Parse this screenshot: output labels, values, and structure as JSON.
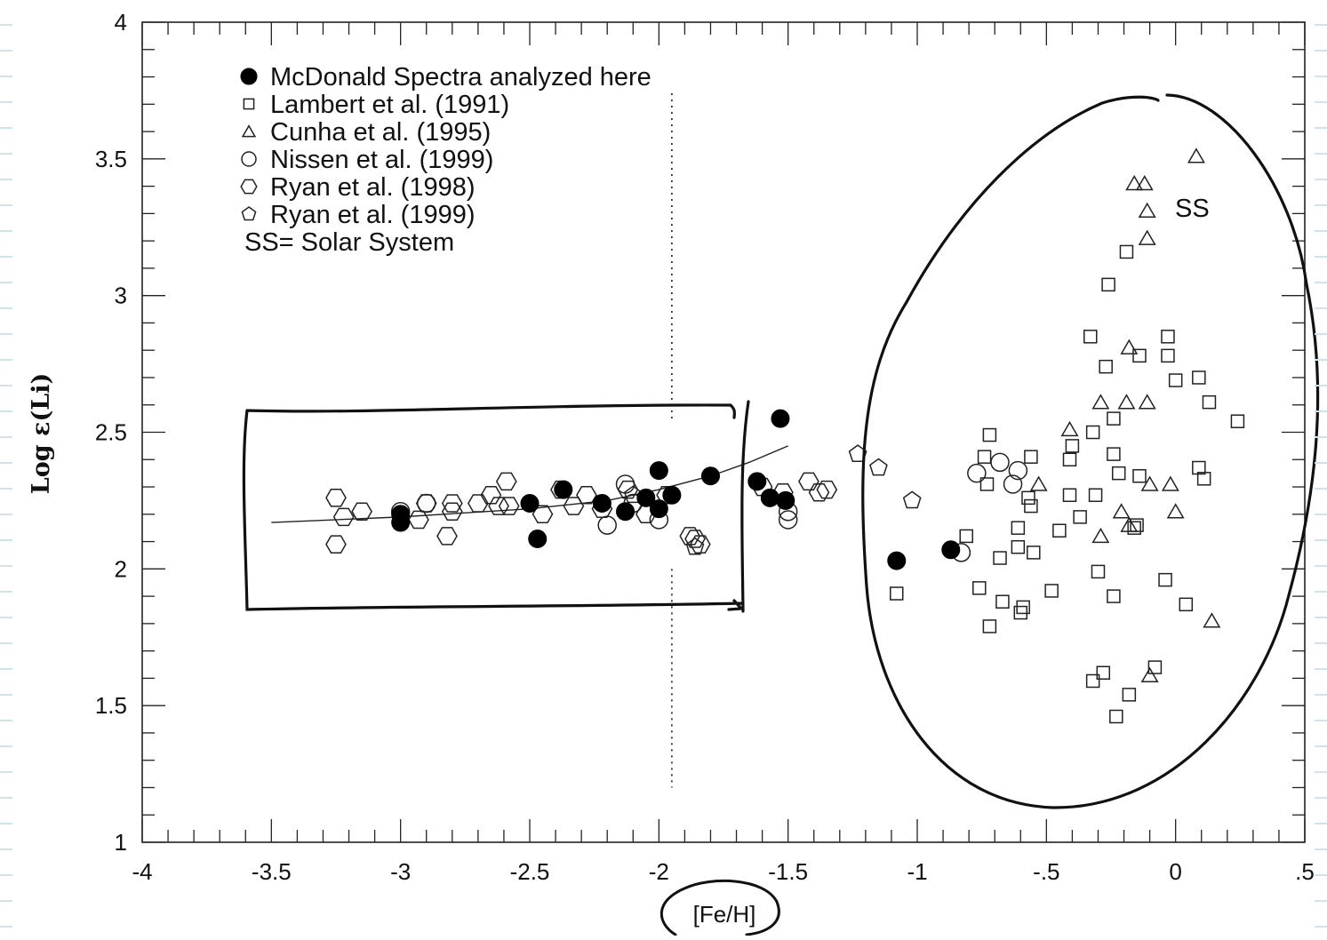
{
  "chart_data": {
    "type": "scatter",
    "title": "",
    "xlabel": "[Fe/H]",
    "ylabel": "Log ε(Li)",
    "xlim": [
      -4,
      0.5
    ],
    "ylim": [
      1,
      4
    ],
    "x_ticks": [
      "-4",
      "-3.5",
      "-3",
      "-2.5",
      "-2",
      "-1.5",
      "-1",
      "-.5",
      "0",
      ".5"
    ],
    "y_ticks": [
      "1",
      "1.5",
      "2",
      "2.5",
      "3",
      "3.5",
      "4"
    ],
    "grid": false,
    "legend_position": "top-left",
    "legend": [
      {
        "marker": "filled-circle",
        "label": "McDonald Spectra analyzed here"
      },
      {
        "marker": "square",
        "label": "Lambert et al. (1991)"
      },
      {
        "marker": "triangle",
        "label": "Cunha et al. (1995)"
      },
      {
        "marker": "circle",
        "label": "Nissen et al. (1999)"
      },
      {
        "marker": "hexagon",
        "label": "Ryan et al. (1998)"
      },
      {
        "marker": "pentagon",
        "label": "Ryan et al. (1999)"
      }
    ],
    "legend_note": "SS= Solar System",
    "annotation": "SS",
    "vertical_reference_line": -1.95,
    "series": [
      {
        "name": "McDonald Spectra analyzed here",
        "marker": "filled-circle",
        "points": [
          [
            -3.0,
            2.2
          ],
          [
            -3.0,
            2.17
          ],
          [
            -2.5,
            2.24
          ],
          [
            -2.47,
            2.11
          ],
          [
            -2.37,
            2.29
          ],
          [
            -2.22,
            2.24
          ],
          [
            -2.13,
            2.21
          ],
          [
            -2.05,
            2.26
          ],
          [
            -2.0,
            2.36
          ],
          [
            -2.0,
            2.22
          ],
          [
            -1.95,
            2.27
          ],
          [
            -1.8,
            2.34
          ],
          [
            -1.62,
            2.32
          ],
          [
            -1.57,
            2.26
          ],
          [
            -1.53,
            2.55
          ],
          [
            -1.51,
            2.25
          ],
          [
            -1.08,
            2.03
          ],
          [
            -0.87,
            2.07
          ]
        ]
      },
      {
        "name": "Lambert et al. (1991)",
        "marker": "square",
        "points": [
          [
            -1.08,
            1.91
          ],
          [
            -0.81,
            2.12
          ],
          [
            -0.76,
            1.93
          ],
          [
            -0.74,
            2.41
          ],
          [
            -0.73,
            2.31
          ],
          [
            -0.72,
            2.49
          ],
          [
            -0.72,
            1.79
          ],
          [
            -0.68,
            2.04
          ],
          [
            -0.67,
            1.88
          ],
          [
            -0.61,
            2.15
          ],
          [
            -0.61,
            2.08
          ],
          [
            -0.6,
            1.84
          ],
          [
            -0.59,
            1.86
          ],
          [
            -0.57,
            2.26
          ],
          [
            -0.56,
            2.23
          ],
          [
            -0.56,
            2.41
          ],
          [
            -0.55,
            2.06
          ],
          [
            -0.48,
            1.92
          ],
          [
            -0.45,
            2.14
          ],
          [
            -0.41,
            2.4
          ],
          [
            -0.41,
            2.27
          ],
          [
            -0.4,
            2.45
          ],
          [
            -0.37,
            2.19
          ],
          [
            -0.33,
            2.85
          ],
          [
            -0.32,
            2.5
          ],
          [
            -0.32,
            1.59
          ],
          [
            -0.31,
            2.27
          ],
          [
            -0.3,
            1.99
          ],
          [
            -0.28,
            1.62
          ],
          [
            -0.27,
            2.74
          ],
          [
            -0.26,
            3.04
          ],
          [
            -0.24,
            2.55
          ],
          [
            -0.24,
            2.42
          ],
          [
            -0.24,
            1.9
          ],
          [
            -0.23,
            1.46
          ],
          [
            -0.22,
            2.35
          ],
          [
            -0.19,
            3.16
          ],
          [
            -0.18,
            1.54
          ],
          [
            -0.16,
            2.15
          ],
          [
            -0.15,
            2.16
          ],
          [
            -0.14,
            2.78
          ],
          [
            -0.14,
            2.34
          ],
          [
            -0.08,
            1.64
          ],
          [
            -0.04,
            1.96
          ],
          [
            -0.03,
            2.85
          ],
          [
            -0.03,
            2.78
          ],
          [
            0.0,
            2.69
          ],
          [
            0.04,
            1.87
          ],
          [
            0.09,
            2.7
          ],
          [
            0.09,
            2.37
          ],
          [
            0.11,
            2.33
          ],
          [
            0.13,
            2.61
          ],
          [
            0.24,
            2.54
          ]
        ]
      },
      {
        "name": "Cunha et al. (1995)",
        "marker": "triangle",
        "points": [
          [
            -0.53,
            2.31
          ],
          [
            -0.41,
            2.51
          ],
          [
            -0.29,
            2.12
          ],
          [
            -0.29,
            2.61
          ],
          [
            -0.21,
            2.21
          ],
          [
            -0.19,
            2.61
          ],
          [
            -0.18,
            2.81
          ],
          [
            -0.16,
            3.41
          ],
          [
            -0.12,
            3.41
          ],
          [
            -0.11,
            3.31
          ],
          [
            -0.11,
            3.21
          ],
          [
            -0.11,
            2.61
          ],
          [
            -0.1,
            2.31
          ],
          [
            -0.1,
            1.61
          ],
          [
            -0.02,
            2.31
          ],
          [
            0.0,
            2.21
          ],
          [
            0.08,
            3.51
          ],
          [
            0.14,
            1.81
          ],
          [
            -0.18,
            2.16
          ]
        ]
      },
      {
        "name": "Nissen et al. (1999)",
        "marker": "circle",
        "points": [
          [
            -3.0,
            2.21
          ],
          [
            -2.9,
            2.24
          ],
          [
            -2.2,
            2.16
          ],
          [
            -2.13,
            2.31
          ],
          [
            -2.1,
            2.24
          ],
          [
            -2.0,
            2.18
          ],
          [
            -1.5,
            2.18
          ],
          [
            -1.5,
            2.21
          ],
          [
            -0.83,
            2.06
          ],
          [
            -0.77,
            2.35
          ],
          [
            -0.68,
            2.39
          ],
          [
            -0.63,
            2.31
          ],
          [
            -0.61,
            2.36
          ]
        ]
      },
      {
        "name": "Ryan et al. (1998)",
        "marker": "hexagon",
        "points": [
          [
            -3.25,
            2.26
          ],
          [
            -3.25,
            2.09
          ],
          [
            -3.22,
            2.19
          ],
          [
            -3.15,
            2.21
          ],
          [
            -2.93,
            2.18
          ],
          [
            -2.9,
            2.24
          ],
          [
            -2.82,
            2.12
          ],
          [
            -2.8,
            2.24
          ],
          [
            -2.8,
            2.21
          ],
          [
            -2.7,
            2.24
          ],
          [
            -2.65,
            2.27
          ],
          [
            -2.62,
            2.23
          ],
          [
            -2.59,
            2.32
          ],
          [
            -2.58,
            2.23
          ],
          [
            -2.45,
            2.2
          ],
          [
            -2.38,
            2.29
          ],
          [
            -2.33,
            2.23
          ],
          [
            -2.28,
            2.27
          ],
          [
            -2.22,
            2.22
          ],
          [
            -2.12,
            2.29
          ],
          [
            -2.05,
            2.2
          ],
          [
            -1.97,
            2.27
          ],
          [
            -1.88,
            2.12
          ],
          [
            -1.86,
            2.11
          ],
          [
            -1.84,
            2.09
          ],
          [
            -1.6,
            2.3
          ],
          [
            -1.52,
            2.28
          ],
          [
            -1.42,
            2.32
          ],
          [
            -1.35,
            2.29
          ],
          [
            -1.38,
            2.28
          ]
        ]
      },
      {
        "name": "Ryan et al. (1999)",
        "marker": "pentagon",
        "points": [
          [
            -2.1,
            2.27
          ],
          [
            -1.86,
            2.08
          ],
          [
            -1.23,
            2.42
          ],
          [
            -1.15,
            2.37
          ],
          [
            -1.02,
            2.25
          ]
        ]
      }
    ],
    "trend_curve": [
      [
        -3.5,
        2.17
      ],
      [
        -3.0,
        2.19
      ],
      [
        -2.5,
        2.22
      ],
      [
        -2.2,
        2.25
      ],
      [
        -2.0,
        2.29
      ],
      [
        -1.8,
        2.34
      ],
      [
        -1.65,
        2.39
      ],
      [
        -1.5,
        2.45
      ]
    ]
  }
}
